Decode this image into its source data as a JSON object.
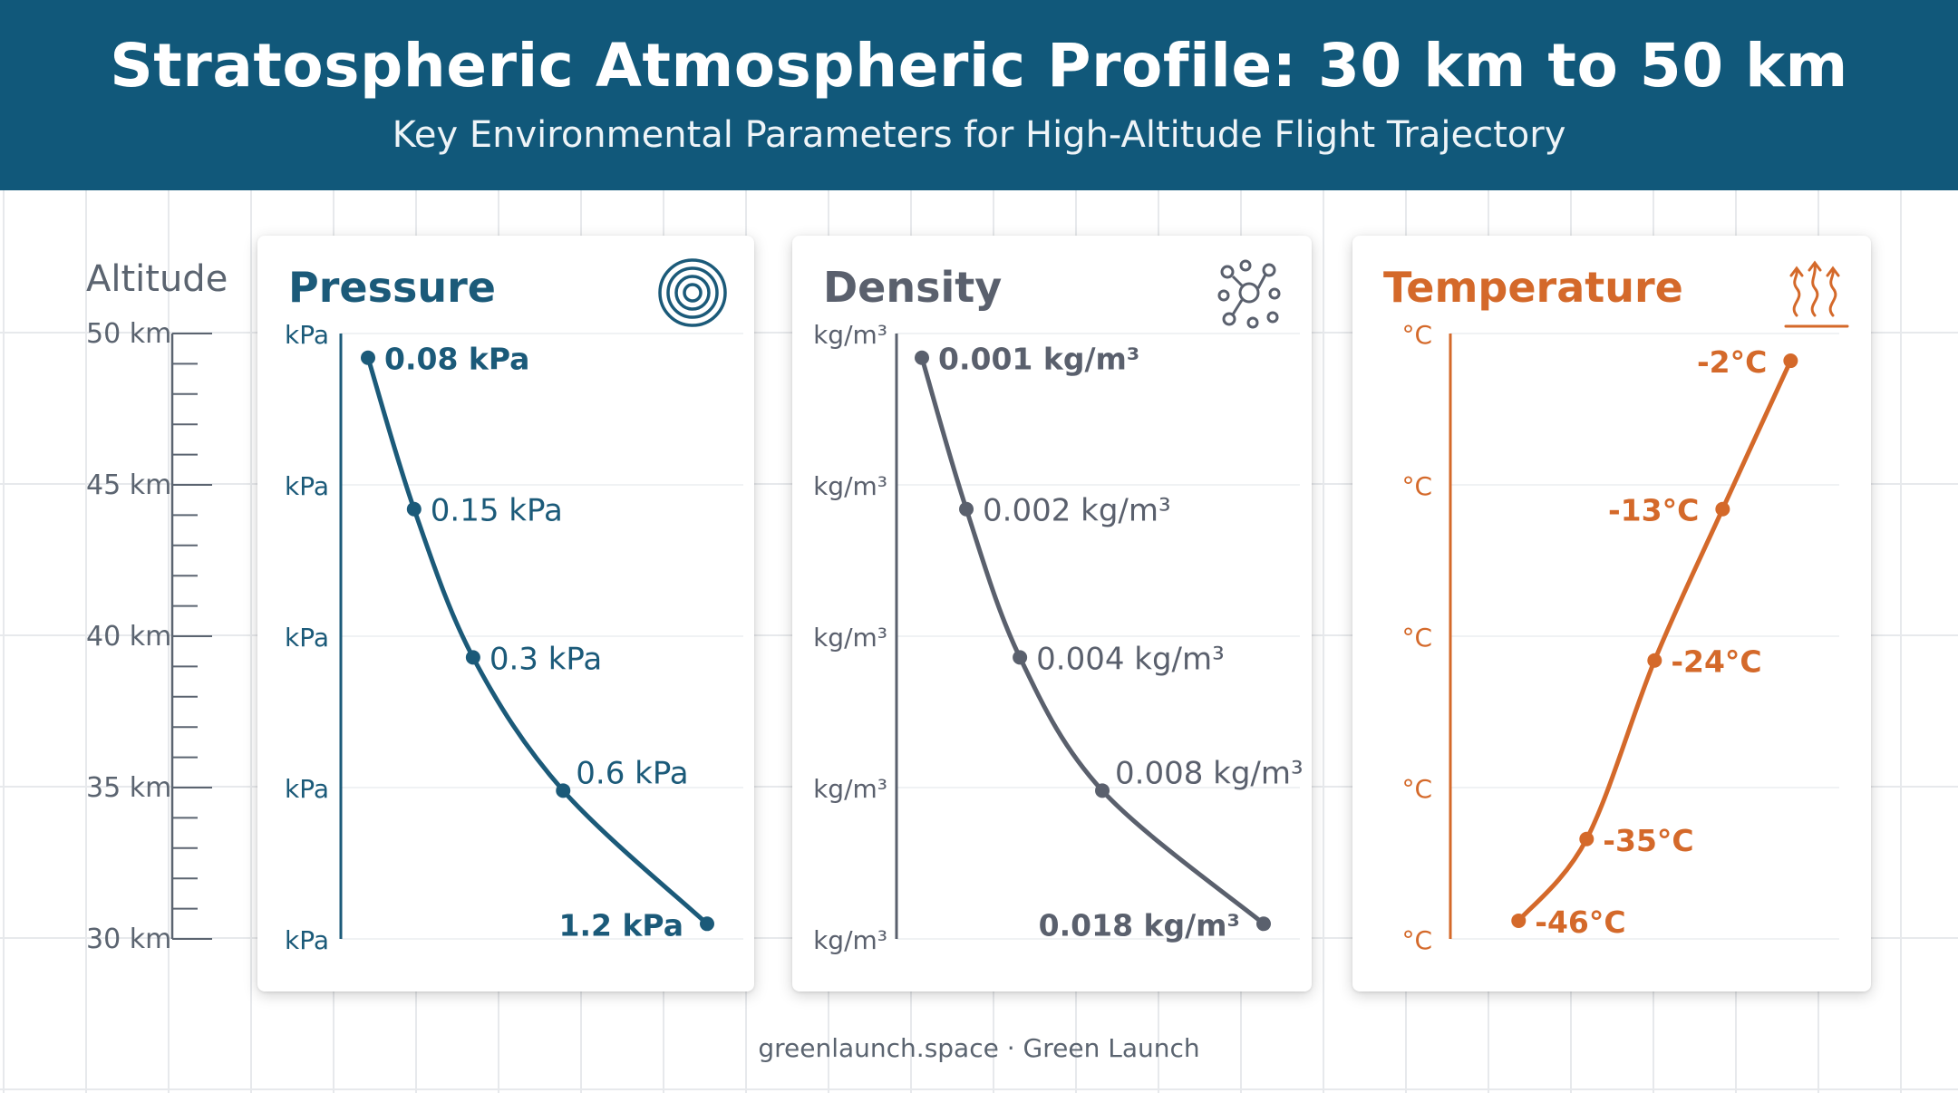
{
  "header": {
    "title": "Stratospheric Atmospheric Profile: 30 km to 50 km",
    "subtitle": "Key Environmental Parameters for High-Altitude Flight Trajectory"
  },
  "altitude_axis": {
    "title": "Altitude",
    "ticks": [
      {
        "value": 50,
        "label": "50 km"
      },
      {
        "value": 45,
        "label": "45 km"
      },
      {
        "value": 40,
        "label": "40 km"
      },
      {
        "value": 35,
        "label": "35 km"
      },
      {
        "value": 30,
        "label": "30 km"
      }
    ]
  },
  "chart_data": [
    {
      "type": "line",
      "title": "Pressure",
      "icon": "pressure-rings-icon",
      "color": "#1b5a79",
      "x_unit_label": "kPa",
      "y_ticks": [
        50,
        45,
        40,
        35,
        30
      ],
      "ylim": [
        30,
        50
      ],
      "xlim": [
        0,
        1.35
      ],
      "x_scale": "nonlinear",
      "points": [
        {
          "altitude": 49.2,
          "value": 0.08,
          "label": "0.08 kPa",
          "label_pos": "right",
          "bold": true
        },
        {
          "altitude": 44.2,
          "value": 0.15,
          "label": "0.15 kPa",
          "label_pos": "right",
          "bold": false
        },
        {
          "altitude": 39.3,
          "value": 0.3,
          "label": "0.3 kPa",
          "label_pos": "right",
          "bold": false
        },
        {
          "altitude": 34.9,
          "value": 0.6,
          "label": "0.6 kPa",
          "label_pos": "above-right",
          "bold": false
        },
        {
          "altitude": 30.5,
          "value": 1.2,
          "label": "1.2 kPa",
          "label_pos": "left",
          "bold": true
        }
      ]
    },
    {
      "type": "line",
      "title": "Density",
      "icon": "molecules-icon",
      "color": "#5a606d",
      "x_unit_label": "kg/m³",
      "y_ticks": [
        50,
        45,
        40,
        35,
        30
      ],
      "ylim": [
        30,
        50
      ],
      "xlim": [
        0,
        0.02
      ],
      "x_scale": "nonlinear",
      "points": [
        {
          "altitude": 49.2,
          "value": 0.001,
          "label": "0.001 kg/m³",
          "label_pos": "right",
          "bold": true
        },
        {
          "altitude": 44.2,
          "value": 0.002,
          "label": "0.002 kg/m³",
          "label_pos": "right",
          "bold": false
        },
        {
          "altitude": 39.3,
          "value": 0.004,
          "label": "0.004 kg/m³",
          "label_pos": "right",
          "bold": false
        },
        {
          "altitude": 34.9,
          "value": 0.008,
          "label": "0.008 kg/m³",
          "label_pos": "above-right",
          "bold": false
        },
        {
          "altitude": 30.5,
          "value": 0.018,
          "label": "0.018 kg/m³",
          "label_pos": "left",
          "bold": true
        }
      ]
    },
    {
      "type": "line",
      "title": "Temperature",
      "icon": "heat-waves-icon",
      "color": "#d4692a",
      "x_unit_label": "°C",
      "y_ticks": [
        50,
        45,
        40,
        35,
        30
      ],
      "ylim": [
        30,
        50
      ],
      "xlim": [
        -50,
        0
      ],
      "x_scale": "linear",
      "points": [
        {
          "altitude": 49.1,
          "value": -2,
          "label": "-2°C",
          "label_pos": "left",
          "bold": true
        },
        {
          "altitude": 44.2,
          "value": -13,
          "label": "-13°C",
          "label_pos": "left",
          "bold": true
        },
        {
          "altitude": 39.2,
          "value": -24,
          "label": "-24°C",
          "label_pos": "right",
          "bold": true
        },
        {
          "altitude": 33.3,
          "value": -35,
          "label": "-35°C",
          "label_pos": "right",
          "bold": true
        },
        {
          "altitude": 30.6,
          "value": -46,
          "label": "-46°C",
          "label_pos": "right",
          "bold": true
        }
      ]
    }
  ],
  "footer": "greenlaunch.space · Green Launch"
}
